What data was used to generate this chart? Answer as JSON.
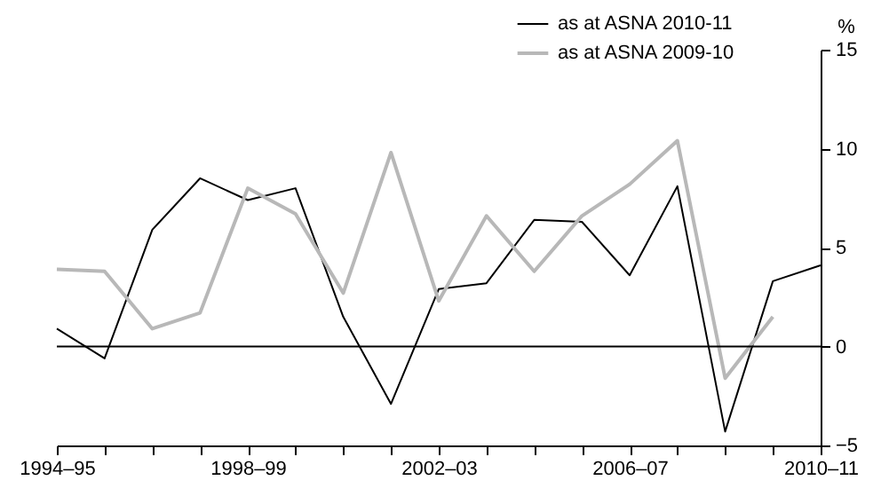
{
  "chart_data": {
    "type": "line",
    "ylabel": "%",
    "categories": [
      "1994–95",
      null,
      null,
      null,
      "1998–99",
      null,
      null,
      null,
      "2002–03",
      null,
      null,
      null,
      "2006–07",
      null,
      null,
      null,
      "2010–11"
    ],
    "series": [
      {
        "name": "as at  ASNA 2010-11",
        "color": "#000000",
        "values": [
          0.9,
          -0.6,
          5.9,
          8.5,
          7.4,
          8.0,
          1.5,
          -2.9,
          2.9,
          3.2,
          6.4,
          6.3,
          3.6,
          8.1,
          -4.3,
          3.3,
          4.1
        ]
      },
      {
        "name": "as at ASNA 2009-10",
        "color": "#b8b8b8",
        "values": [
          3.9,
          3.8,
          0.9,
          1.7,
          8.0,
          6.7,
          2.7,
          9.8,
          2.3,
          6.6,
          3.8,
          6.6,
          8.2,
          10.4,
          -1.6,
          1.5,
          null
        ]
      }
    ],
    "ylim": [
      -5,
      15
    ],
    "yticks": [
      -5,
      0,
      5,
      10,
      15
    ],
    "grid": false,
    "legend": "top right",
    "ref_lines": [
      {
        "axis": "y",
        "value": 0,
        "color": "#000000"
      }
    ]
  }
}
